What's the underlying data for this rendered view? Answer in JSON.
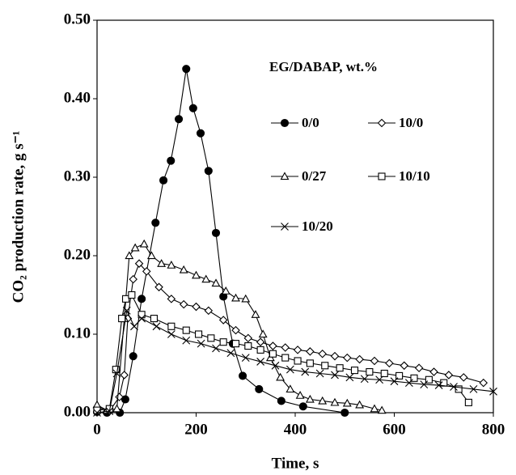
{
  "chart_data": {
    "type": "line",
    "xlabel": "Time, s",
    "ylabel": "CO₂ production rate, g s⁻¹",
    "legend_title": "EG/DABAP, wt.%",
    "xlim": [
      0,
      800
    ],
    "xticks": [
      0,
      200,
      400,
      600,
      800
    ],
    "ylim": [
      0,
      0.5
    ],
    "yticks": [
      {
        "value": 0,
        "label": "0.00"
      },
      {
        "value": 0.1,
        "label": "0.10"
      },
      {
        "value": 0.2,
        "label": "0.20"
      },
      {
        "value": 0.3,
        "label": "0.30"
      },
      {
        "value": 0.4,
        "label": "0.40"
      },
      {
        "value": 0.5,
        "label": "0.50"
      }
    ],
    "series": [
      {
        "name": "0/0",
        "color": "#000000",
        "marker": "circle-filled",
        "x": [
          0,
          20,
          46,
          57,
          73,
          90,
          118,
          134,
          149,
          165,
          180,
          194,
          209,
          225,
          240,
          255,
          274,
          294,
          327,
          372,
          416,
          500
        ],
        "values": [
          0.001,
          0.0,
          0.0,
          0.017,
          0.072,
          0.145,
          0.242,
          0.296,
          0.321,
          0.374,
          0.438,
          0.388,
          0.356,
          0.308,
          0.229,
          0.148,
          0.088,
          0.047,
          0.03,
          0.015,
          0.008,
          0.0
        ]
      },
      {
        "name": "10/0",
        "color": "#000000",
        "marker": "diamond",
        "x": [
          0,
          25,
          45,
          55,
          62,
          73,
          85,
          100,
          125,
          150,
          175,
          200,
          225,
          255,
          280,
          305,
          330,
          355,
          380,
          405,
          430,
          455,
          480,
          505,
          530,
          560,
          590,
          620,
          650,
          680,
          710,
          740,
          780
        ],
        "values": [
          0.007,
          0.002,
          0.02,
          0.048,
          0.12,
          0.17,
          0.19,
          0.18,
          0.16,
          0.145,
          0.138,
          0.135,
          0.13,
          0.118,
          0.105,
          0.095,
          0.09,
          0.085,
          0.083,
          0.08,
          0.078,
          0.075,
          0.072,
          0.07,
          0.068,
          0.066,
          0.063,
          0.06,
          0.057,
          0.052,
          0.048,
          0.045,
          0.038
        ]
      },
      {
        "name": "0/27",
        "color": "#000000",
        "marker": "triangle",
        "x": [
          0,
          20,
          40,
          55,
          65,
          77,
          95,
          110,
          130,
          150,
          175,
          200,
          220,
          240,
          260,
          280,
          300,
          320,
          335,
          350,
          370,
          390,
          410,
          430,
          455,
          480,
          505,
          530,
          560,
          575
        ],
        "values": [
          0.01,
          0.003,
          0.005,
          0.12,
          0.2,
          0.21,
          0.215,
          0.2,
          0.19,
          0.188,
          0.182,
          0.175,
          0.17,
          0.165,
          0.155,
          0.146,
          0.145,
          0.125,
          0.1,
          0.07,
          0.045,
          0.03,
          0.022,
          0.017,
          0.015,
          0.013,
          0.012,
          0.01,
          0.005,
          0.003
        ]
      },
      {
        "name": "10/10",
        "color": "#000000",
        "marker": "square",
        "x": [
          0,
          25,
          38,
          50,
          58,
          70,
          90,
          115,
          150,
          180,
          205,
          230,
          255,
          280,
          305,
          330,
          355,
          380,
          405,
          430,
          460,
          490,
          520,
          550,
          580,
          610,
          640,
          670,
          700,
          730,
          750
        ],
        "values": [
          0.003,
          0.005,
          0.055,
          0.12,
          0.145,
          0.15,
          0.125,
          0.12,
          0.11,
          0.105,
          0.1,
          0.095,
          0.09,
          0.088,
          0.085,
          0.08,
          0.075,
          0.07,
          0.066,
          0.063,
          0.06,
          0.057,
          0.054,
          0.052,
          0.05,
          0.047,
          0.044,
          0.042,
          0.038,
          0.03,
          0.013
        ]
      },
      {
        "name": "10/20",
        "color": "#000000",
        "marker": "cross",
        "x": [
          0,
          25,
          40,
          60,
          75,
          90,
          120,
          150,
          180,
          210,
          240,
          270,
          300,
          330,
          360,
          390,
          420,
          450,
          480,
          510,
          540,
          570,
          600,
          630,
          660,
          690,
          720,
          760,
          800
        ],
        "values": [
          0.0,
          0.002,
          0.05,
          0.13,
          0.11,
          0.12,
          0.11,
          0.1,
          0.092,
          0.088,
          0.082,
          0.076,
          0.07,
          0.065,
          0.06,
          0.055,
          0.052,
          0.05,
          0.048,
          0.045,
          0.043,
          0.042,
          0.04,
          0.038,
          0.036,
          0.035,
          0.033,
          0.03,
          0.027
        ]
      }
    ]
  }
}
